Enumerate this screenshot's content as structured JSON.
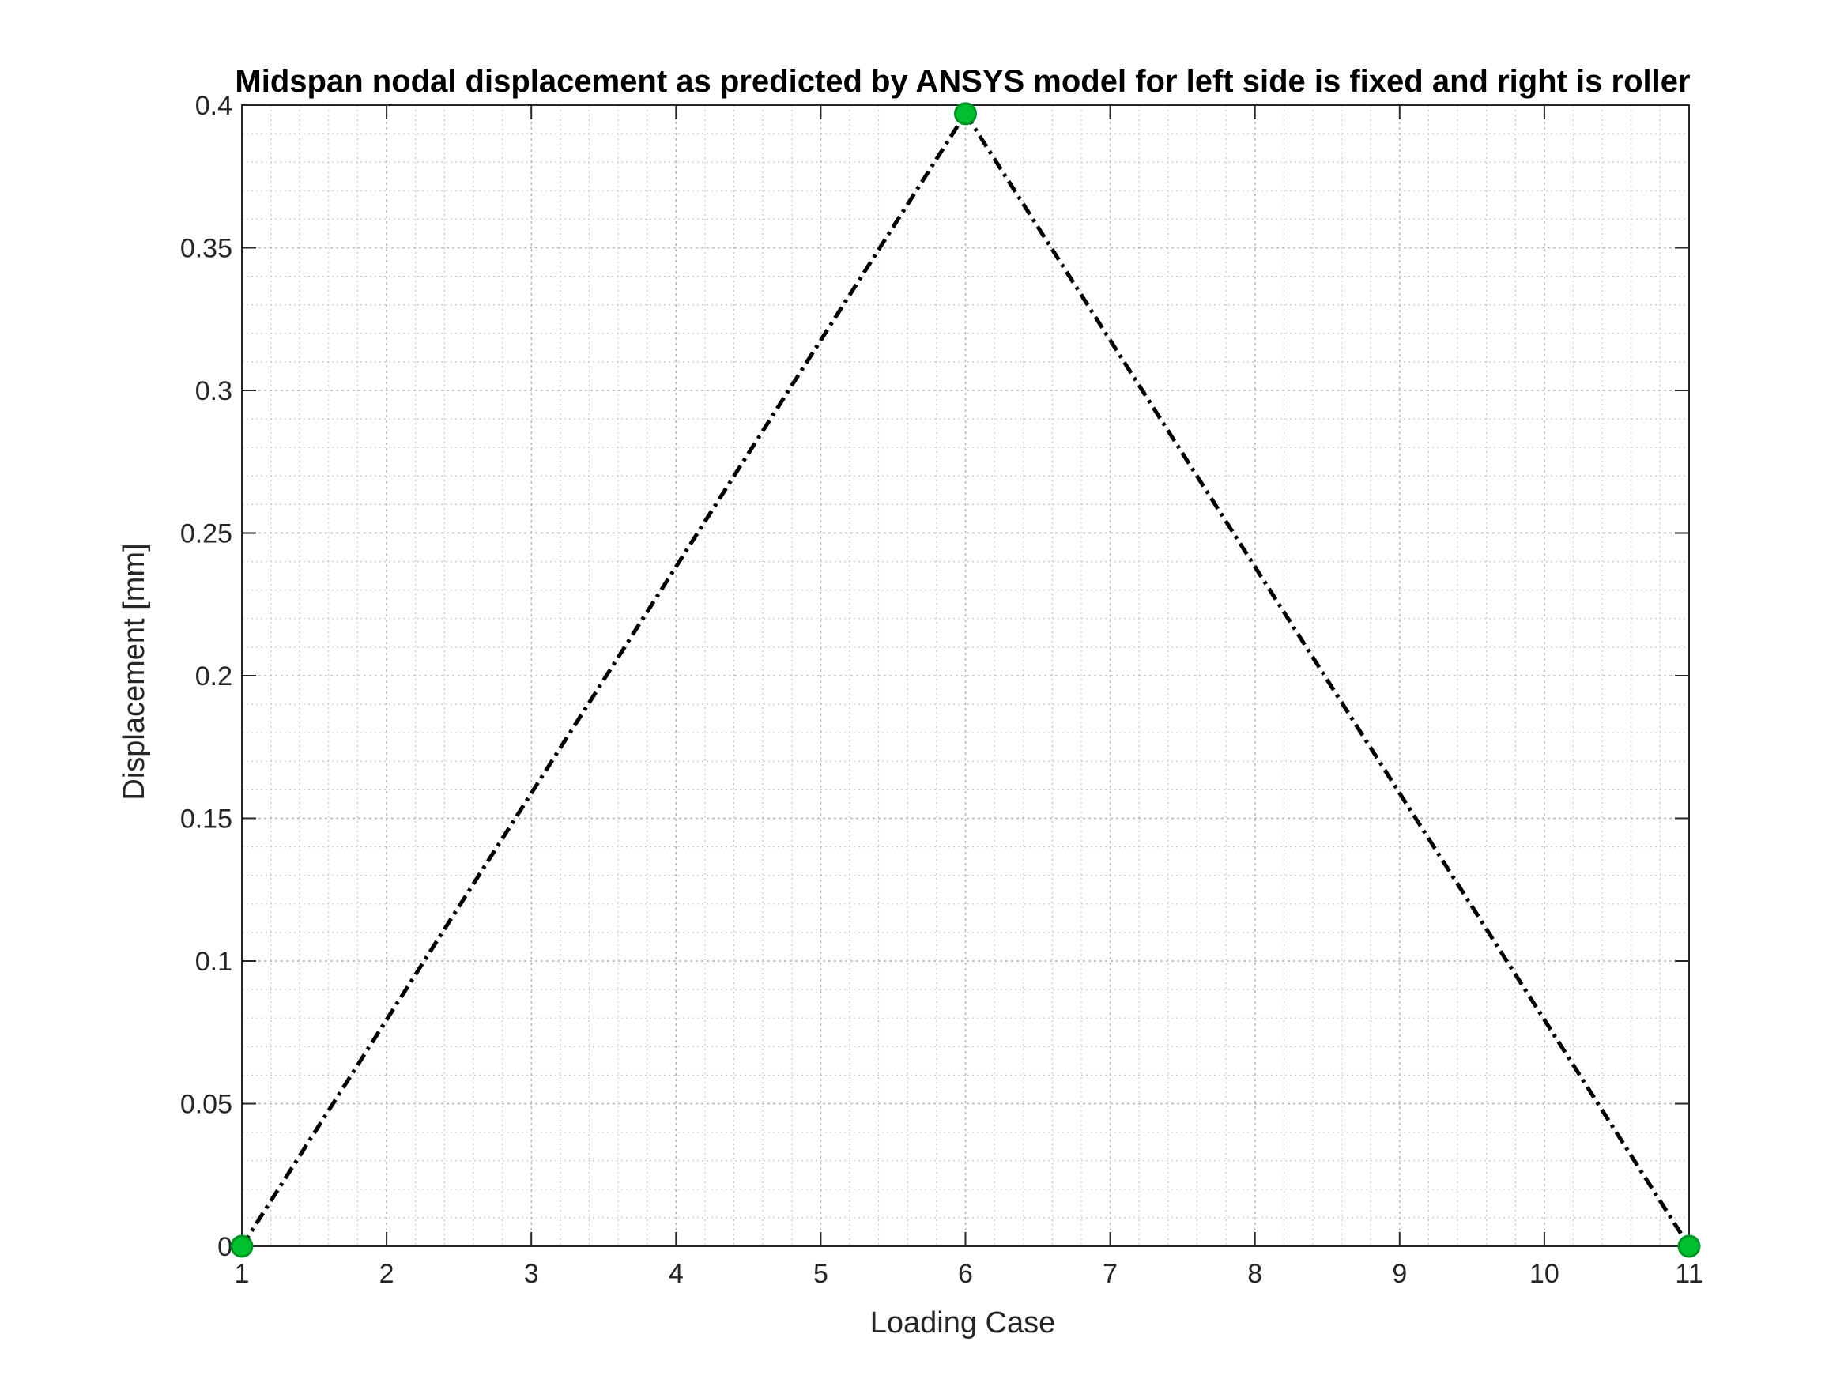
{
  "chart_data": {
    "type": "line",
    "title": "Midspan nodal displacement as predicted by ANSYS model for left side is fixed and right is roller",
    "xlabel": "Loading Case",
    "ylabel": "Displacement [mm]",
    "xlim": [
      1,
      11
    ],
    "ylim": [
      0,
      0.4
    ],
    "x_ticks": [
      1,
      2,
      3,
      4,
      5,
      6,
      7,
      8,
      9,
      10,
      11
    ],
    "y_ticks": [
      0,
      0.05,
      0.1,
      0.15,
      0.2,
      0.25,
      0.3,
      0.35,
      0.4
    ],
    "x_tick_labels": [
      "1",
      "2",
      "3",
      "4",
      "5",
      "6",
      "7",
      "8",
      "9",
      "10",
      "11"
    ],
    "y_tick_labels": [
      "0",
      "0.05",
      "0.1",
      "0.15",
      "0.2",
      "0.25",
      "0.3",
      "0.35",
      "0.4"
    ],
    "grid": "on, with minor grid",
    "line_style": "dash-dot",
    "line_color": "#000000",
    "marker_color": "#00C030",
    "series": [
      {
        "x": [
          1,
          6,
          11
        ],
        "y": [
          0,
          0.397,
          0
        ]
      }
    ]
  }
}
